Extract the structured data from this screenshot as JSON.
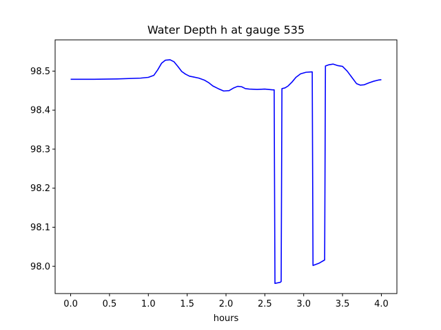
{
  "chart_data": {
    "type": "line",
    "title": "Water Depth h at gauge 535",
    "xlabel": "hours",
    "ylabel": "",
    "xlim": [
      -0.2,
      4.2
    ],
    "ylim": [
      97.93,
      98.58
    ],
    "xticks": [
      0.0,
      0.5,
      1.0,
      1.5,
      2.0,
      2.5,
      3.0,
      3.5,
      4.0
    ],
    "xtick_labels": [
      "0.0",
      "0.5",
      "1.0",
      "1.5",
      "2.0",
      "2.5",
      "3.0",
      "3.5",
      "4.0"
    ],
    "yticks": [
      98.0,
      98.1,
      98.2,
      98.3,
      98.4,
      98.5
    ],
    "ytick_labels": [
      "98.0",
      "98.1",
      "98.2",
      "98.3",
      "98.4",
      "98.5"
    ],
    "grid": false,
    "series": [
      {
        "color": "#0000ff",
        "x": [
          0.0,
          0.3,
          0.6,
          0.9,
          1.0,
          1.07,
          1.12,
          1.17,
          1.22,
          1.28,
          1.33,
          1.38,
          1.43,
          1.48,
          1.53,
          1.58,
          1.65,
          1.72,
          1.78,
          1.83,
          1.9,
          1.97,
          2.04,
          2.1,
          2.15,
          2.2,
          2.25,
          2.3,
          2.4,
          2.5,
          2.6,
          2.62,
          2.63,
          2.7,
          2.71,
          2.72,
          2.76,
          2.8,
          2.85,
          2.9,
          2.96,
          3.03,
          3.1,
          3.11,
          3.12,
          3.2,
          3.26,
          3.27,
          3.28,
          3.32,
          3.38,
          3.44,
          3.5,
          3.56,
          3.62,
          3.68,
          3.73,
          3.78,
          3.84,
          3.9,
          3.96,
          4.0
        ],
        "y": [
          98.479,
          98.479,
          98.48,
          98.482,
          98.484,
          98.489,
          98.503,
          98.52,
          98.528,
          98.529,
          98.524,
          98.512,
          98.499,
          98.492,
          98.487,
          98.485,
          98.482,
          98.477,
          98.47,
          98.462,
          98.455,
          98.449,
          98.45,
          98.457,
          98.461,
          98.46,
          98.455,
          98.454,
          98.453,
          98.454,
          98.452,
          98.452,
          97.956,
          97.959,
          97.961,
          98.455,
          98.457,
          98.462,
          98.472,
          98.484,
          98.493,
          98.497,
          98.498,
          98.498,
          98.002,
          98.008,
          98.015,
          98.016,
          98.513,
          98.516,
          98.518,
          98.514,
          98.512,
          98.5,
          98.484,
          98.468,
          98.464,
          98.465,
          98.47,
          98.474,
          98.477,
          98.478
        ]
      }
    ]
  }
}
